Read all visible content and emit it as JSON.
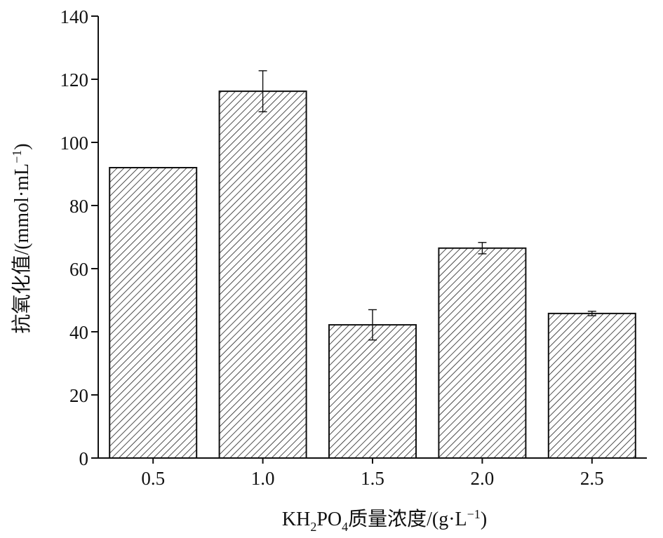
{
  "chart_data": {
    "type": "bar",
    "categories": [
      "0.5",
      "1.0",
      "1.5",
      "2.0",
      "2.5"
    ],
    "values": [
      92.0,
      116.2,
      42.2,
      66.5,
      45.8
    ],
    "error": [
      0.0,
      6.5,
      4.8,
      1.8,
      0.7
    ],
    "xlabel": {
      "prefix": "KH",
      "sub1": "2",
      "mid": "PO",
      "sub2": "4",
      "suffix": "质量浓度/(g·L",
      "sup": "−1",
      "end": ")"
    },
    "ylabel": {
      "main": "抗氧化值/(mmol·mL",
      "sup": "−1",
      "end": ")"
    },
    "ylim": [
      0,
      140
    ],
    "yticks": [
      "0",
      "20",
      "40",
      "60",
      "80",
      "100",
      "120",
      "140"
    ],
    "grid": false,
    "legend": "none",
    "bar_fill": "hatched",
    "colors": {
      "bar_stroke": "#111111",
      "hatch": "#222222",
      "axis": "#111111"
    }
  }
}
